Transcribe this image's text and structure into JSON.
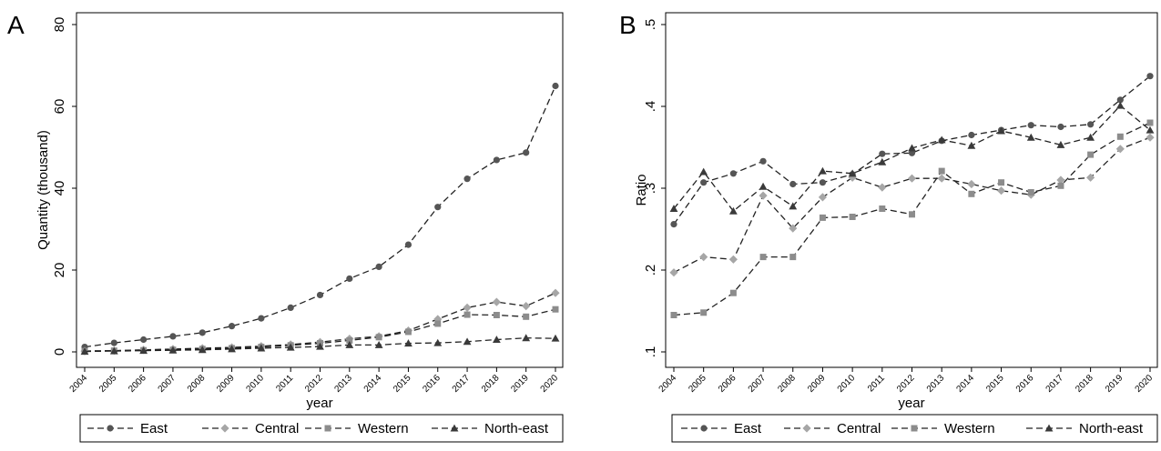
{
  "colors": {
    "East": "#555555",
    "Central": "#a6a6a6",
    "Western": "#8c8c8c",
    "North-east": "#3a3a3a"
  },
  "chart_data": [
    {
      "type": "line",
      "panel_label": "A",
      "title": "",
      "xlabel": "year",
      "ylabel": "Quantity (thousand)",
      "x": [
        2004,
        2005,
        2006,
        2007,
        2008,
        2009,
        2010,
        2011,
        2012,
        2013,
        2014,
        2015,
        2016,
        2017,
        2018,
        2019,
        2020
      ],
      "x_tick_labels": [
        "2004",
        "2005",
        "2006",
        "2007",
        "2008",
        "2009",
        "2010",
        "2011",
        "2012",
        "2013",
        "2014",
        "2015",
        "2016",
        "2017",
        "2018",
        "2019",
        "2020"
      ],
      "ylim": [
        0,
        80
      ],
      "y_ticks": [
        0,
        20,
        40,
        60,
        80
      ],
      "y_tick_labels": [
        "0",
        "20",
        "40",
        "60",
        "80"
      ],
      "grid": false,
      "legend_position": "bottom",
      "series": [
        {
          "name": "East",
          "marker": "circle",
          "values": [
            1.2,
            2.2,
            3.0,
            3.8,
            4.7,
            6.3,
            8.2,
            10.8,
            13.9,
            17.9,
            20.8,
            26.2,
            35.4,
            42.3,
            46.9,
            48.7,
            65.0
          ]
        },
        {
          "name": "Central",
          "marker": "diamond",
          "values": [
            0.2,
            0.3,
            0.5,
            0.7,
            0.9,
            1.1,
            1.4,
            1.8,
            2.4,
            3.2,
            3.8,
            5.2,
            8.0,
            10.8,
            12.2,
            11.2,
            14.4
          ]
        },
        {
          "name": "Western",
          "marker": "square",
          "values": [
            0.2,
            0.3,
            0.4,
            0.5,
            0.7,
            0.9,
            1.2,
            1.6,
            2.1,
            2.8,
            3.6,
            4.9,
            6.9,
            9.1,
            9.0,
            8.6,
            10.4
          ]
        },
        {
          "name": "North-east",
          "marker": "triangle",
          "values": [
            0.1,
            0.2,
            0.3,
            0.4,
            0.5,
            0.7,
            0.9,
            1.1,
            1.3,
            1.7,
            1.7,
            2.1,
            2.2,
            2.5,
            3.0,
            3.4,
            3.3
          ]
        }
      ]
    },
    {
      "type": "line",
      "panel_label": "B",
      "title": "",
      "xlabel": "year",
      "ylabel": "Ratio",
      "x": [
        2004,
        2005,
        2006,
        2007,
        2008,
        2009,
        2010,
        2011,
        2012,
        2013,
        2014,
        2015,
        2016,
        2017,
        2018,
        2019,
        2020
      ],
      "x_tick_labels": [
        "2004",
        "2005",
        "2006",
        "2007",
        "2008",
        "2009",
        "2010",
        "2011",
        "2012",
        "2013",
        "2014",
        "2015",
        "2016",
        "2017",
        "2018",
        "2019",
        "2020"
      ],
      "ylim": [
        0.1,
        0.5
      ],
      "y_ticks": [
        0.1,
        0.2,
        0.3,
        0.4,
        0.5
      ],
      "y_tick_labels": [
        ".1",
        ".2",
        ".3",
        ".4",
        ".5"
      ],
      "grid": false,
      "legend_position": "bottom",
      "series": [
        {
          "name": "East",
          "marker": "circle",
          "values": [
            0.256,
            0.307,
            0.318,
            0.333,
            0.305,
            0.307,
            0.317,
            0.342,
            0.343,
            0.358,
            0.365,
            0.371,
            0.377,
            0.375,
            0.378,
            0.408,
            0.437
          ]
        },
        {
          "name": "Central",
          "marker": "diamond",
          "values": [
            0.197,
            0.216,
            0.213,
            0.291,
            0.251,
            0.289,
            0.313,
            0.301,
            0.312,
            0.312,
            0.305,
            0.297,
            0.292,
            0.31,
            0.313,
            0.348,
            0.362
          ]
        },
        {
          "name": "Western",
          "marker": "square",
          "values": [
            0.145,
            0.148,
            0.172,
            0.216,
            0.216,
            0.264,
            0.265,
            0.275,
            0.268,
            0.321,
            0.293,
            0.307,
            0.295,
            0.303,
            0.341,
            0.363,
            0.38
          ]
        },
        {
          "name": "North-east",
          "marker": "triangle",
          "values": [
            0.275,
            0.32,
            0.272,
            0.302,
            0.278,
            0.321,
            0.318,
            0.332,
            0.349,
            0.359,
            0.352,
            0.37,
            0.362,
            0.353,
            0.362,
            0.401,
            0.371
          ]
        }
      ]
    }
  ]
}
